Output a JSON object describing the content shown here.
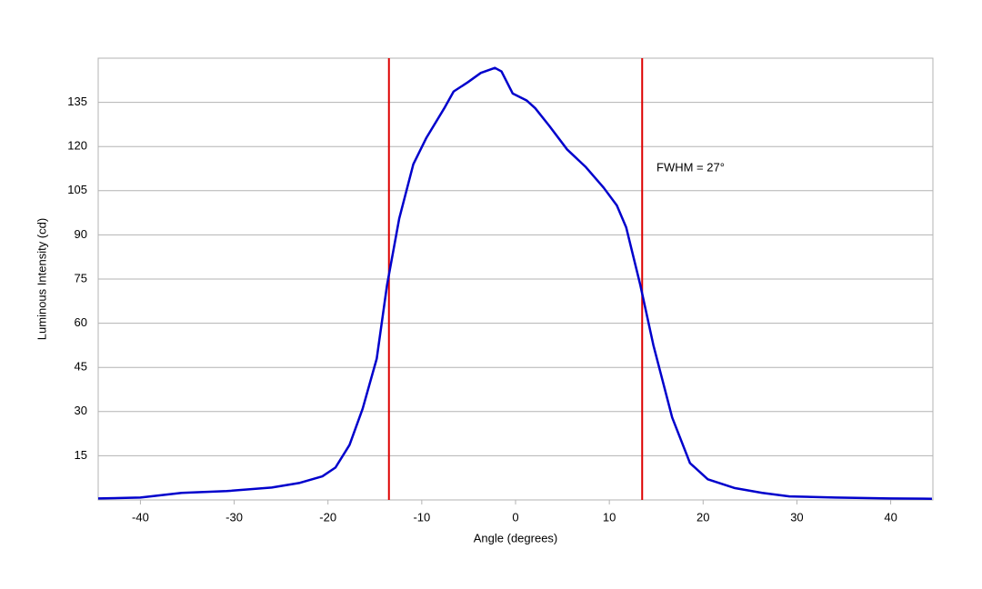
{
  "chart_data": {
    "type": "line",
    "x_label": "Angle (degrees)",
    "y_label": "Luminous Intensity (cd)",
    "annotation": "FWHM = 27°",
    "x": [
      -44.5,
      -40,
      -35.6,
      -30.8,
      -26,
      -23,
      -20.6,
      -19.2,
      -17.7,
      -16.3,
      -14.8,
      -13.7,
      -12.4,
      -10.9,
      -9.5,
      -7.6,
      -6.6,
      -5.1,
      -3.7,
      -2.2,
      -1.5,
      -0.3,
      1.2,
      2.1,
      3.6,
      5.5,
      7.5,
      9.4,
      10.8,
      11.8,
      13.3,
      14.7,
      16.7,
      18.6,
      20.5,
      23.4,
      26.3,
      29.2,
      34.1,
      39.9,
      44.4
    ],
    "series": [
      {
        "color": "#0000cc",
        "values": [
          0.5,
          0.8,
          2.4,
          3,
          4.2,
          5.8,
          8,
          11,
          18.7,
          31,
          48,
          73,
          95.6,
          114,
          123,
          133,
          138.7,
          141.8,
          145,
          146.7,
          145.5,
          138,
          135.6,
          133,
          127,
          119,
          113,
          106,
          100,
          92.5,
          73,
          52.5,
          28,
          12.5,
          7,
          4,
          2.4,
          1.2,
          0.8,
          0.5,
          0.4
        ]
      }
    ],
    "vlines": [
      -13.5,
      13.5
    ],
    "vline_color": "#dd0000",
    "xlim": [
      -44.5,
      44.5
    ],
    "xticks": [
      -40,
      -30,
      -20,
      -10,
      0,
      10,
      20,
      30,
      40
    ],
    "ylim": [
      0,
      150
    ],
    "yticks": [
      15,
      30,
      45,
      60,
      75,
      90,
      105,
      120,
      135
    ],
    "grid": true
  }
}
